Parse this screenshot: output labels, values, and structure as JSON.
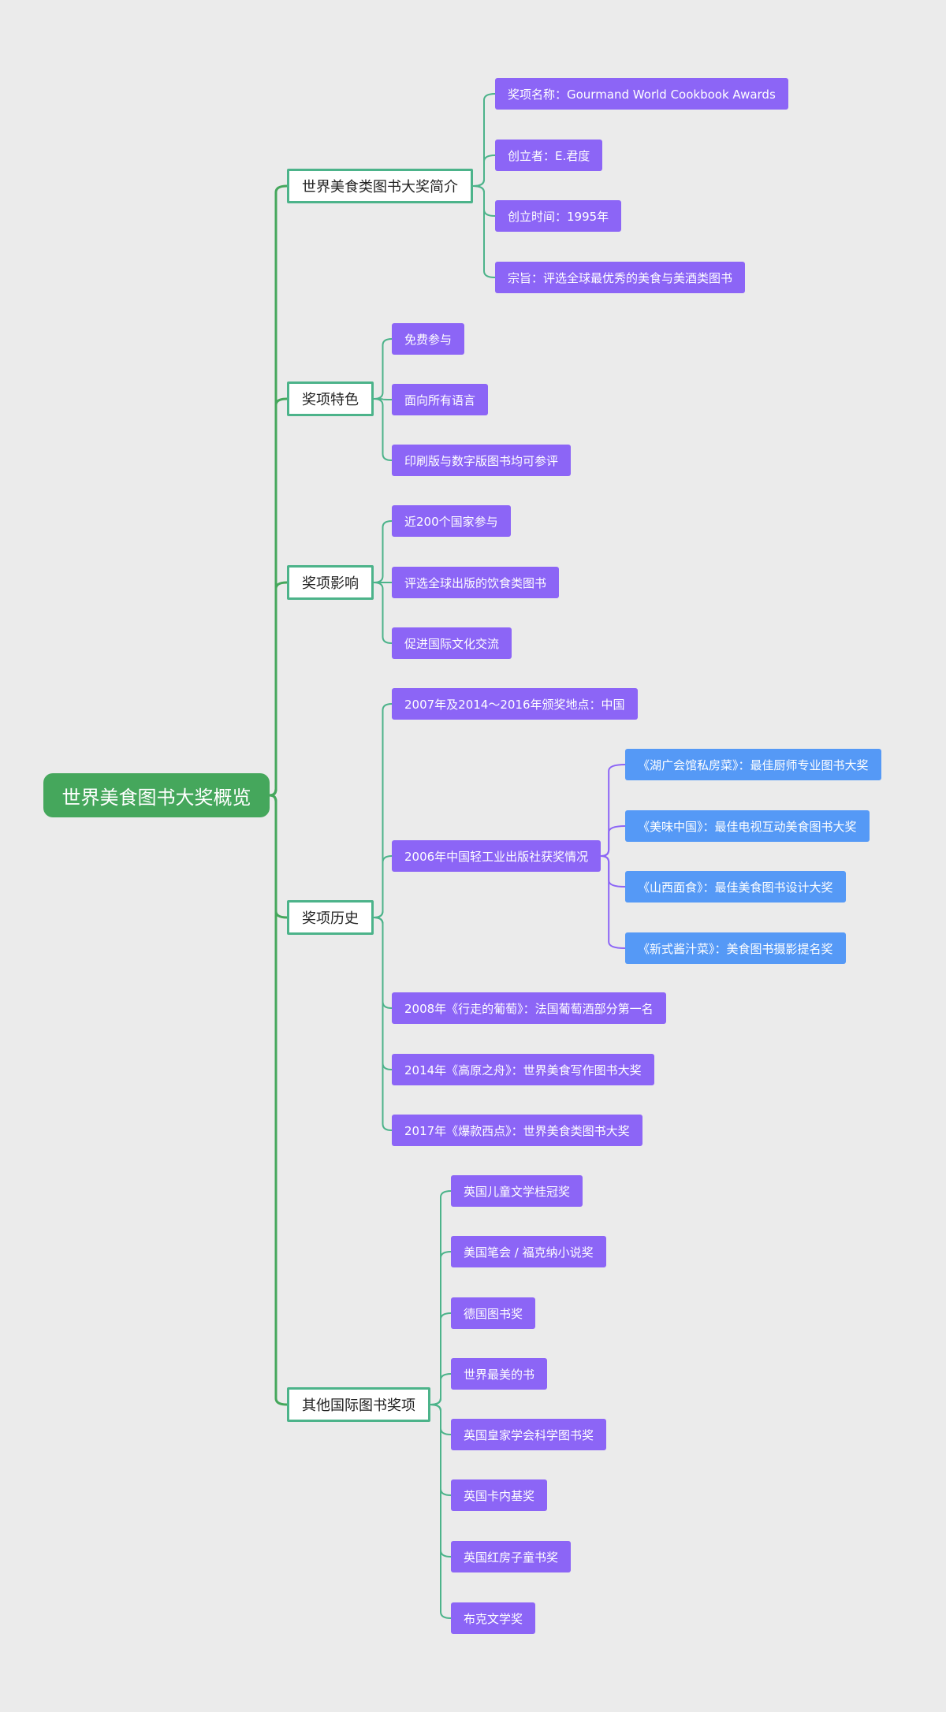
{
  "root": {
    "title": "世界美食图书大奖概览"
  },
  "colors": {
    "root": "#45a75c",
    "branch_line": "#4cb38a",
    "leaf": "#8c65f6",
    "sub_leaf": "#5599f6",
    "background": "#ebebeb"
  },
  "branches": [
    {
      "label": "世界美食类图书大奖简介",
      "children": [
        {
          "label": "奖项名称：Gourmand World Cookbook Awards"
        },
        {
          "label": "创立者：E.君度"
        },
        {
          "label": "创立时间：1995年"
        },
        {
          "label": "宗旨：评选全球最优秀的美食与美酒类图书"
        }
      ]
    },
    {
      "label": "奖项特色",
      "children": [
        {
          "label": "免费参与"
        },
        {
          "label": "面向所有语言"
        },
        {
          "label": "印刷版与数字版图书均可参评"
        }
      ]
    },
    {
      "label": "奖项影响",
      "children": [
        {
          "label": "近200个国家参与"
        },
        {
          "label": "评选全球出版的饮食类图书"
        },
        {
          "label": "促进国际文化交流"
        }
      ]
    },
    {
      "label": "奖项历史",
      "children": [
        {
          "label": "2007年及2014～2016年颁奖地点：中国"
        },
        {
          "label": "2006年中国轻工业出版社获奖情况",
          "children": [
            {
              "label": "《湖广会馆私房菜》：最佳厨师专业图书大奖"
            },
            {
              "label": "《美味中国》：最佳电视互动美食图书大奖"
            },
            {
              "label": "《山西面食》：最佳美食图书设计大奖"
            },
            {
              "label": "《新式酱汁菜》：美食图书摄影提名奖"
            }
          ]
        },
        {
          "label": "2008年《行走的葡萄》：法国葡萄酒部分第一名"
        },
        {
          "label": "2014年《高原之舟》：世界美食写作图书大奖"
        },
        {
          "label": "2017年《爆款西点》：世界美食类图书大奖"
        }
      ]
    },
    {
      "label": "其他国际图书奖项",
      "children": [
        {
          "label": "英国儿童文学桂冠奖"
        },
        {
          "label": "美国笔会 / 福克纳小说奖"
        },
        {
          "label": "德国图书奖"
        },
        {
          "label": "世界最美的书"
        },
        {
          "label": "英国皇家学会科学图书奖"
        },
        {
          "label": "英国卡内基奖"
        },
        {
          "label": "英国红房子童书奖"
        },
        {
          "label": "布克文学奖"
        }
      ]
    }
  ]
}
